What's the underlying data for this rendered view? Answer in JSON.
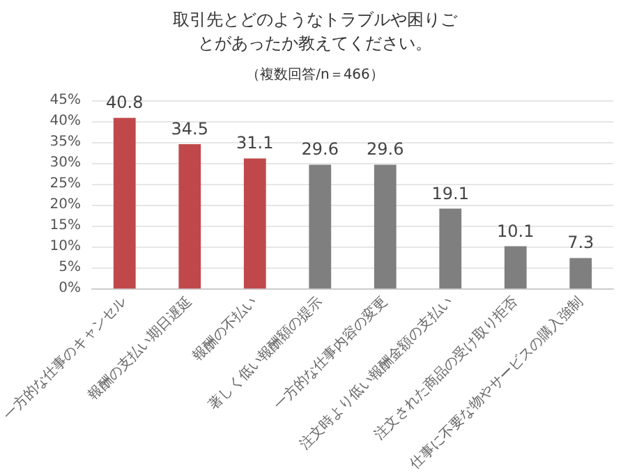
{
  "chart_data": {
    "type": "bar",
    "title": "取引先とどのようなトラブルや困りごとがあったか教えてください。",
    "subtitle": "（複数回答/n＝466）",
    "categories": [
      "一方的な仕事のキャンセル",
      "報酬の支払い期日遅延",
      "報酬の不払い",
      "著しく低い報酬額の提示",
      "一方的な仕事内容の変更",
      "注文時より低い報酬金額の支払い",
      "注文された商品の受け取り拒否",
      "仕事に不要な物やサービスの購入強制"
    ],
    "values": [
      40.8,
      34.5,
      31.1,
      29.6,
      29.6,
      19.1,
      10.1,
      7.3
    ],
    "colors": [
      "#c0484b",
      "#c0484b",
      "#c0484b",
      "#7f7f7f",
      "#7f7f7f",
      "#7f7f7f",
      "#7f7f7f",
      "#7f7f7f"
    ],
    "ylim": [
      0,
      45
    ],
    "yticks": [
      {
        "value": 0,
        "label": "0%"
      },
      {
        "value": 5,
        "label": "5%"
      },
      {
        "value": 10,
        "label": "10%"
      },
      {
        "value": 15,
        "label": "15%"
      },
      {
        "value": 20,
        "label": "20%"
      },
      {
        "value": 25,
        "label": "25%"
      },
      {
        "value": 30,
        "label": "30%"
      },
      {
        "value": 35,
        "label": "35%"
      },
      {
        "value": 40,
        "label": "40%"
      },
      {
        "value": 45,
        "label": "45%"
      }
    ],
    "data_labels": true,
    "grid": "y"
  }
}
